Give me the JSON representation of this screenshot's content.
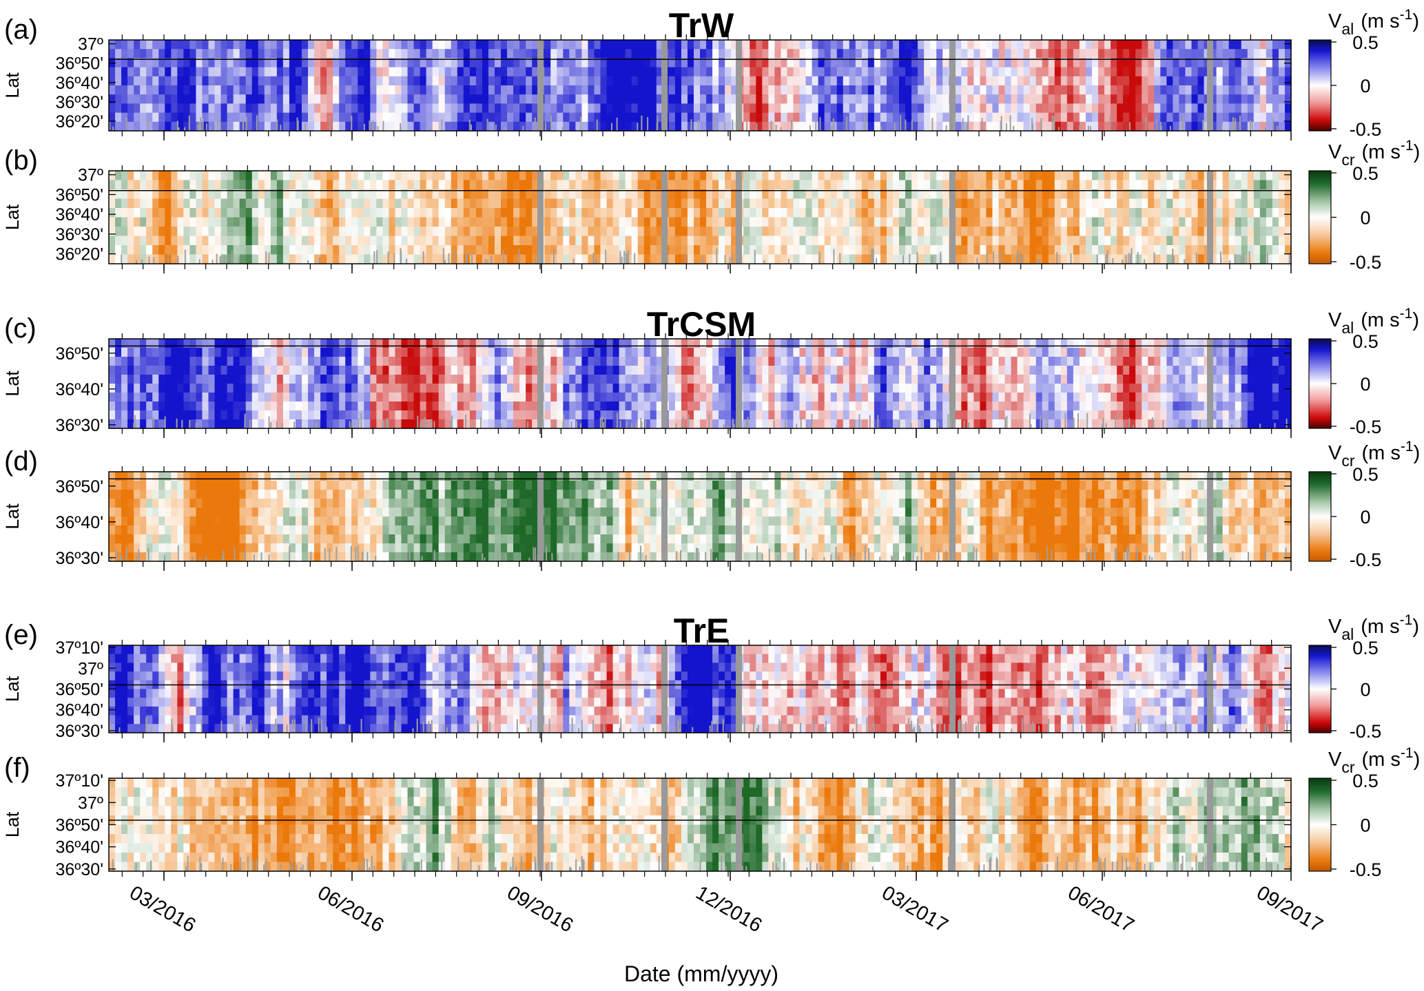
{
  "xlabel": "Date (mm/yyyy)",
  "ylabel": "Lat",
  "date_ticks": [
    "03/2016",
    "06/2016",
    "09/2016",
    "12/2016",
    "03/2017",
    "06/2017",
    "09/2017"
  ],
  "colors": {
    "along_positive": "#1a1acc",
    "along_negative": "#cc0000",
    "cross_positive": "#0f5a1e",
    "cross_negative": "#e07000",
    "gap": "#999999",
    "line": "#000000"
  },
  "chart_data": [
    {
      "type": "heatmap",
      "panel": "(a)",
      "title": "TrW",
      "variable": "V",
      "variable_sub": "al",
      "units": "(m s",
      "units_exp": "-1",
      "units_close": ")",
      "cbar_ticks": [
        "0.5",
        "0",
        "-0.5"
      ],
      "vlim": [
        -0.5,
        0.5
      ],
      "lat_ticks": [
        "37º",
        "36º50'",
        "36º40'",
        "36º30'",
        "36º20'"
      ],
      "lat_values": [
        37.0,
        36.8333,
        36.6667,
        36.5,
        36.3333
      ],
      "lat_range": [
        36.25,
        37.0333
      ],
      "lat_line": 36.8667,
      "colormap": "blue-white-red"
    },
    {
      "type": "heatmap",
      "panel": "(b)",
      "title": "",
      "variable": "V",
      "variable_sub": "cr",
      "units": "(m s",
      "units_exp": "-1",
      "units_close": ")",
      "cbar_ticks": [
        "0.5",
        "0",
        "-0.5"
      ],
      "vlim": [
        -0.5,
        0.5
      ],
      "lat_ticks": [
        "37º",
        "36º50'",
        "36º40'",
        "36º30'",
        "36º20'"
      ],
      "lat_values": [
        37.0,
        36.8333,
        36.6667,
        36.5,
        36.3333
      ],
      "lat_range": [
        36.25,
        37.0333
      ],
      "lat_line": 36.8667,
      "colormap": "green-white-orange"
    },
    {
      "type": "heatmap",
      "panel": "(c)",
      "title": "TrCSM",
      "variable": "V",
      "variable_sub": "al",
      "units": "(m s",
      "units_exp": "-1",
      "units_close": ")",
      "cbar_ticks": [
        "0.5",
        "0",
        "-0.5"
      ],
      "vlim": [
        -0.5,
        0.5
      ],
      "lat_ticks": [
        "36º50'",
        "36º40'",
        "36º30'"
      ],
      "lat_values": [
        36.8333,
        36.6667,
        36.5
      ],
      "lat_range": [
        36.4833,
        36.9
      ],
      "lat_line": 36.8667,
      "colormap": "blue-white-red"
    },
    {
      "type": "heatmap",
      "panel": "(d)",
      "title": "",
      "variable": "V",
      "variable_sub": "cr",
      "units": "(m s",
      "units_exp": "-1",
      "units_close": ")",
      "cbar_ticks": [
        "0.5",
        "0",
        "-0.5"
      ],
      "vlim": [
        -0.5,
        0.5
      ],
      "lat_ticks": [
        "36º50'",
        "36º40'",
        "36º30'"
      ],
      "lat_values": [
        36.8333,
        36.6667,
        36.5
      ],
      "lat_range": [
        36.4833,
        36.9
      ],
      "lat_line": 36.8667,
      "colormap": "green-white-orange"
    },
    {
      "type": "heatmap",
      "panel": "(e)",
      "title": "TrE",
      "variable": "V",
      "variable_sub": "al",
      "units": "(m s",
      "units_exp": "-1",
      "units_close": ")",
      "cbar_ticks": [
        "0.5",
        "0",
        "-0.5"
      ],
      "vlim": [
        -0.5,
        0.5
      ],
      "lat_ticks": [
        "37º10'",
        "37º",
        "36º50'",
        "36º40'",
        "36º30'"
      ],
      "lat_values": [
        37.1667,
        37.0,
        36.8333,
        36.6667,
        36.5
      ],
      "lat_range": [
        36.4833,
        37.1833
      ],
      "lat_line": 36.8667,
      "colormap": "blue-white-red"
    },
    {
      "type": "heatmap",
      "panel": "(f)",
      "title": "",
      "variable": "V",
      "variable_sub": "cr",
      "units": "(m s",
      "units_exp": "-1",
      "units_close": ")",
      "cbar_ticks": [
        "0.5",
        "0",
        "-0.5"
      ],
      "vlim": [
        -0.5,
        0.5
      ],
      "lat_ticks": [
        "37º10'",
        "37º",
        "36º50'",
        "36º40'",
        "36º30'"
      ],
      "lat_values": [
        37.1667,
        37.0,
        36.8333,
        36.6667,
        36.5
      ],
      "lat_range": [
        36.4833,
        37.1833
      ],
      "lat_line": 36.8667,
      "colormap": "green-white-orange"
    }
  ]
}
